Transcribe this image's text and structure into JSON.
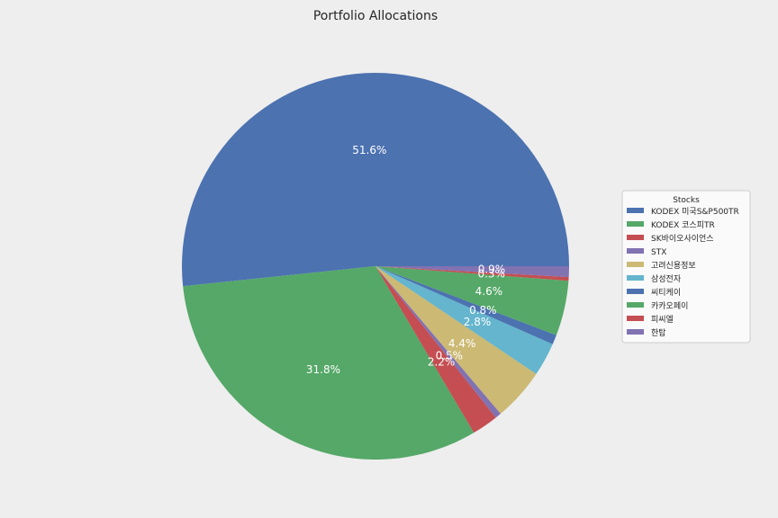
{
  "chart_data": {
    "type": "pie",
    "title": "Portfolio Allocations",
    "legend_title": "Stocks",
    "legend_placement": "right",
    "start_angle_deg": 0,
    "direction": "counterclockwise",
    "slices": [
      {
        "label": "KODEX 미국S&P500TR",
        "value": 51.6,
        "pct_label": "51.6%",
        "color": "#4c72b0"
      },
      {
        "label": "KODEX 코스피TR",
        "value": 31.8,
        "pct_label": "31.8%",
        "color": "#55a868"
      },
      {
        "label": "SK바이오사이언스",
        "value": 2.2,
        "pct_label": "2.2%",
        "color": "#c44e52"
      },
      {
        "label": "STX",
        "value": 0.5,
        "pct_label": "0.5%",
        "color": "#8172b2"
      },
      {
        "label": "고려신용정보",
        "value": 4.4,
        "pct_label": "4.4%",
        "color": "#ccb974"
      },
      {
        "label": "삼성전자",
        "value": 2.8,
        "pct_label": "2.8%",
        "color": "#64b5cd"
      },
      {
        "label": "씨티케이",
        "value": 0.8,
        "pct_label": "0.8%",
        "color": "#4c72b0"
      },
      {
        "label": "카카오페이",
        "value": 4.6,
        "pct_label": "4.6%",
        "color": "#55a868"
      },
      {
        "label": "피씨엘",
        "value": 0.3,
        "pct_label": "0.3%",
        "color": "#c44e52"
      },
      {
        "label": "한탑",
        "value": 0.9,
        "pct_label": "0.9%",
        "color": "#8172b2"
      }
    ]
  }
}
